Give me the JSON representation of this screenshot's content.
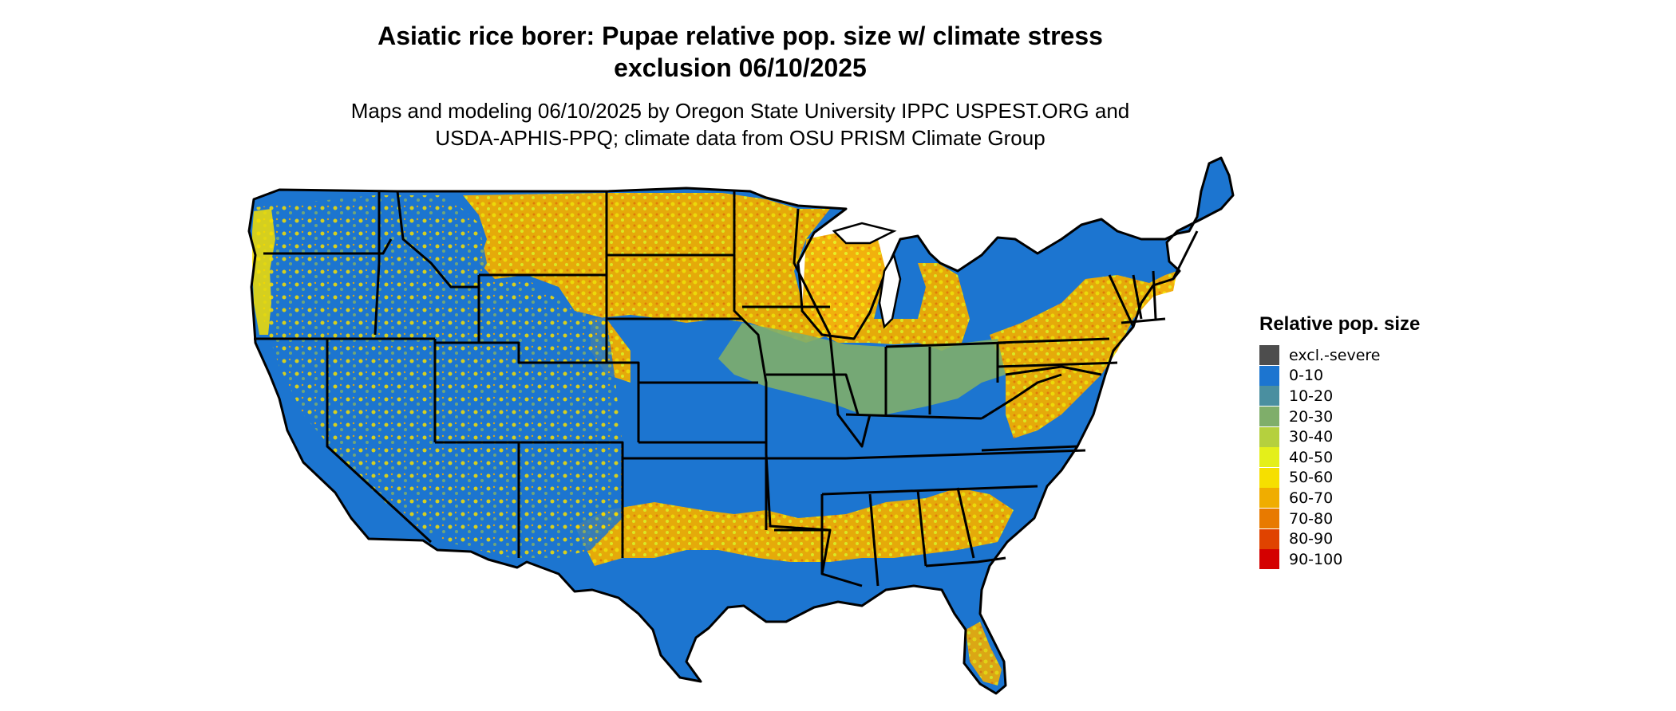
{
  "title": {
    "line1": "Asiatic rice borer: Pupae relative pop. size w/ climate stress",
    "line2": "exclusion 06/10/2025"
  },
  "subtitle": {
    "line1": "Maps and modeling 06/10/2025 by Oregon State University IPPC USPEST.ORG and",
    "line2": "USDA-APHIS-PPQ; climate data from OSU PRISM Climate Group"
  },
  "legend": {
    "title": "Relative pop. size",
    "items": [
      {
        "label": "excl.-severe",
        "color": "#4d4d4d"
      },
      {
        "label": "0-10",
        "color": "#1c75d0"
      },
      {
        "label": "10-20",
        "color": "#4a8fa0"
      },
      {
        "label": "20-30",
        "color": "#7fae6a"
      },
      {
        "label": "30-40",
        "color": "#b5d03e"
      },
      {
        "label": "40-50",
        "color": "#e4ef1a"
      },
      {
        "label": "50-60",
        "color": "#f6df00"
      },
      {
        "label": "60-70",
        "color": "#f0ad00"
      },
      {
        "label": "70-80",
        "color": "#e87a00"
      },
      {
        "label": "80-90",
        "color": "#e04300"
      },
      {
        "label": "90-100",
        "color": "#d40000"
      }
    ]
  }
}
